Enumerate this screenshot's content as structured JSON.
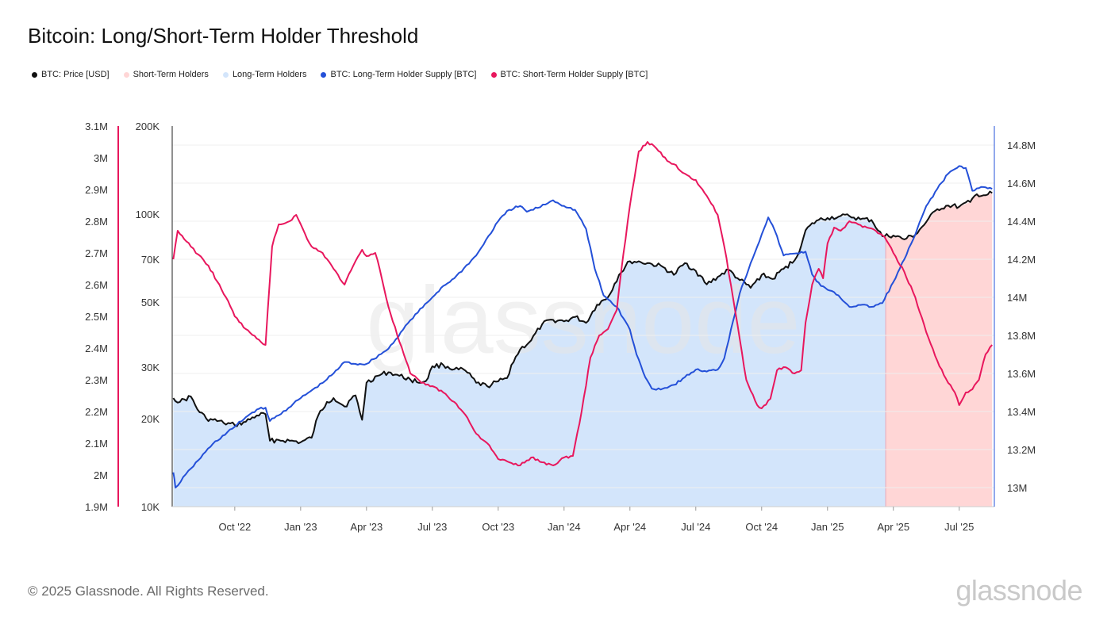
{
  "title": "Bitcoin: Long/Short-Term Holder Threshold",
  "legend": [
    {
      "label": "BTC: Price [USD]",
      "color": "#111111"
    },
    {
      "label": "Short-Term Holders",
      "color": "#ffd6d6"
    },
    {
      "label": "Long-Term Holders",
      "color": "#d3e5fb"
    },
    {
      "label": "BTC: Long-Term Holder Supply [BTC]",
      "color": "#2450d8"
    },
    {
      "label": "BTC: Short-Term Holder Supply [BTC]",
      "color": "#e8175d"
    }
  ],
  "footer": "© 2025 Glassnode. All Rights Reserved.",
  "brand": "glassnode",
  "watermark": "glassnode",
  "chart_data": {
    "type": "line",
    "title": "Bitcoin: Long/Short-Term Holder Threshold",
    "x_start": "2022-08",
    "x_end": "2025-08",
    "x_ticks": [
      {
        "label": "Oct '22",
        "m": 2
      },
      {
        "label": "Jan '23",
        "m": 5
      },
      {
        "label": "Apr '23",
        "m": 8
      },
      {
        "label": "Jul '23",
        "m": 11
      },
      {
        "label": "Oct '23",
        "m": 14
      },
      {
        "label": "Jan '24",
        "m": 17
      },
      {
        "label": "Apr '24",
        "m": 20
      },
      {
        "label": "Jul '24",
        "m": 23
      },
      {
        "label": "Oct '24",
        "m": 26
      },
      {
        "label": "Jan '25",
        "m": 29
      },
      {
        "label": "Apr '25",
        "m": 32
      },
      {
        "label": "Jul '25",
        "m": 35
      }
    ],
    "x_range_months": [
      -0.85,
      36.6
    ],
    "axes": {
      "sth_supply": {
        "range": [
          1900000,
          3100000
        ],
        "ticks": [
          {
            "v": 1900000,
            "label": "1.9M"
          },
          {
            "v": 2000000,
            "label": "2M"
          },
          {
            "v": 2100000,
            "label": "2.1M"
          },
          {
            "v": 2200000,
            "label": "2.2M"
          },
          {
            "v": 2300000,
            "label": "2.3M"
          },
          {
            "v": 2400000,
            "label": "2.4M"
          },
          {
            "v": 2500000,
            "label": "2.5M"
          },
          {
            "v": 2600000,
            "label": "2.6M"
          },
          {
            "v": 2700000,
            "label": "2.7M"
          },
          {
            "v": 2800000,
            "label": "2.8M"
          },
          {
            "v": 2900000,
            "label": "2.9M"
          },
          {
            "v": 3000000,
            "label": "3M"
          },
          {
            "v": 3100000,
            "label": "3.1M"
          }
        ]
      },
      "price_log": {
        "range": [
          10000,
          200000
        ],
        "ticks": [
          {
            "v": 10000,
            "label": "10K"
          },
          {
            "v": 20000,
            "label": "20K"
          },
          {
            "v": 30000,
            "label": "30K"
          },
          {
            "v": 50000,
            "label": "50K"
          },
          {
            "v": 70000,
            "label": "70K"
          },
          {
            "v": 100000,
            "label": "100K"
          },
          {
            "v": 200000,
            "label": "200K"
          }
        ]
      },
      "lth_supply": {
        "range": [
          12900000,
          14900000
        ],
        "ticks": [
          {
            "v": 13000000,
            "label": "13M"
          },
          {
            "v": 13200000,
            "label": "13.2M"
          },
          {
            "v": 13400000,
            "label": "13.4M"
          },
          {
            "v": 13600000,
            "label": "13.6M"
          },
          {
            "v": 13800000,
            "label": "13.8M"
          },
          {
            "v": 14000000,
            "label": "14M"
          },
          {
            "v": 14200000,
            "label": "14.2M"
          },
          {
            "v": 14400000,
            "label": "14.4M"
          },
          {
            "v": 14600000,
            "label": "14.6M"
          },
          {
            "v": 14800000,
            "label": "14.8M"
          }
        ]
      }
    },
    "regime_split_month": 31.65,
    "series": [
      {
        "name": "BTC: Price [USD]",
        "axis": "price_log",
        "color": "#111111",
        "points": [
          [
            -0.8,
            23500
          ],
          [
            -0.5,
            22800
          ],
          [
            0,
            23800
          ],
          [
            0.3,
            21500
          ],
          [
            0.7,
            20000
          ],
          [
            1,
            19800
          ],
          [
            1.5,
            19300
          ],
          [
            2,
            19000
          ],
          [
            2.5,
            19500
          ],
          [
            3,
            20500
          ],
          [
            3.4,
            20700
          ],
          [
            3.6,
            16800
          ],
          [
            4,
            16900
          ],
          [
            4.5,
            16800
          ],
          [
            5,
            16600
          ],
          [
            5.5,
            17200
          ],
          [
            5.8,
            20500
          ],
          [
            6.2,
            22800
          ],
          [
            6.5,
            23500
          ],
          [
            7,
            22000
          ],
          [
            7.5,
            24000
          ],
          [
            7.8,
            19800
          ],
          [
            8,
            26500
          ],
          [
            8.5,
            28000
          ],
          [
            9,
            28800
          ],
          [
            9.5,
            28000
          ],
          [
            10,
            27200
          ],
          [
            10.5,
            26500
          ],
          [
            10.8,
            27500
          ],
          [
            11,
            30200
          ],
          [
            11.5,
            30500
          ],
          [
            12,
            29500
          ],
          [
            12.5,
            29200
          ],
          [
            13,
            26500
          ],
          [
            13.5,
            25800
          ],
          [
            14,
            26800
          ],
          [
            14.4,
            27500
          ],
          [
            14.6,
            30500
          ],
          [
            15,
            34500
          ],
          [
            15.5,
            37000
          ],
          [
            16,
            42000
          ],
          [
            16.5,
            43500
          ],
          [
            17,
            43000
          ],
          [
            17.5,
            44500
          ],
          [
            18,
            42500
          ],
          [
            18.5,
            49000
          ],
          [
            19,
            52000
          ],
          [
            19.5,
            62000
          ],
          [
            20,
            69000
          ],
          [
            20.5,
            68500
          ],
          [
            21,
            67500
          ],
          [
            21.5,
            66000
          ],
          [
            22,
            62000
          ],
          [
            22.5,
            68000
          ],
          [
            23,
            64000
          ],
          [
            23.5,
            57500
          ],
          [
            24,
            61000
          ],
          [
            24.5,
            64500
          ],
          [
            25,
            59500
          ],
          [
            25.5,
            56000
          ],
          [
            26,
            62000
          ],
          [
            26.5,
            60000
          ],
          [
            27,
            65000
          ],
          [
            27.5,
            69500
          ],
          [
            27.8,
            78000
          ],
          [
            28,
            88000
          ],
          [
            28.5,
            95000
          ],
          [
            29,
            97000
          ],
          [
            29.5,
            98000
          ],
          [
            30,
            98500
          ],
          [
            30.5,
            96000
          ],
          [
            31,
            95500
          ],
          [
            31.5,
            84000
          ],
          [
            32,
            84500
          ],
          [
            32.5,
            82000
          ],
          [
            33,
            85000
          ],
          [
            33.5,
            94000
          ],
          [
            34,
            104000
          ],
          [
            34.5,
            107000
          ],
          [
            35,
            106000
          ],
          [
            35.5,
            110000
          ],
          [
            35.8,
            117000
          ],
          [
            36.2,
            116000
          ],
          [
            36.5,
            118000
          ]
        ]
      },
      {
        "name": "BTC: Long-Term Holder Supply [BTC]",
        "axis": "lth_supply",
        "color": "#2450d8",
        "points": [
          [
            -0.8,
            13080
          ],
          [
            -0.7,
            13000
          ],
          [
            0,
            13100
          ],
          [
            1,
            13230
          ],
          [
            2,
            13320
          ],
          [
            2.5,
            13370
          ],
          [
            3,
            13410
          ],
          [
            3.4,
            13420
          ],
          [
            3.6,
            13350
          ],
          [
            4,
            13380
          ],
          [
            5,
            13470
          ],
          [
            6,
            13550
          ],
          [
            6.5,
            13600
          ],
          [
            7,
            13660
          ],
          [
            7.5,
            13650
          ],
          [
            8,
            13650
          ],
          [
            9,
            13730
          ],
          [
            10,
            13880
          ],
          [
            11,
            14000
          ],
          [
            11.5,
            14060
          ],
          [
            12,
            14100
          ],
          [
            13,
            14220
          ],
          [
            14,
            14400
          ],
          [
            14.5,
            14460
          ],
          [
            15,
            14480
          ],
          [
            15.3,
            14450
          ],
          [
            15.8,
            14470
          ],
          [
            16.5,
            14510
          ],
          [
            17,
            14480
          ],
          [
            17.5,
            14460
          ],
          [
            18,
            14360
          ],
          [
            18.4,
            14150
          ],
          [
            18.8,
            14010
          ],
          [
            19.4,
            13950
          ],
          [
            20,
            13830
          ],
          [
            20.3,
            13700
          ],
          [
            20.7,
            13580
          ],
          [
            21,
            13520
          ],
          [
            21.5,
            13520
          ],
          [
            22,
            13540
          ],
          [
            22.5,
            13580
          ],
          [
            23,
            13620
          ],
          [
            23.5,
            13610
          ],
          [
            24,
            13620
          ],
          [
            24.3,
            13680
          ],
          [
            24.6,
            13830
          ],
          [
            25,
            14020
          ],
          [
            25.5,
            14180
          ],
          [
            26,
            14330
          ],
          [
            26.3,
            14420
          ],
          [
            26.6,
            14350
          ],
          [
            27,
            14220
          ],
          [
            27.5,
            14230
          ],
          [
            28,
            14240
          ],
          [
            28.3,
            14120
          ],
          [
            28.7,
            14060
          ],
          [
            29,
            14040
          ],
          [
            29.5,
            14010
          ],
          [
            30,
            13950
          ],
          [
            30.5,
            13960
          ],
          [
            31,
            13950
          ],
          [
            31.5,
            13970
          ],
          [
            32,
            14080
          ],
          [
            32.5,
            14200
          ],
          [
            33,
            14330
          ],
          [
            33.5,
            14480
          ],
          [
            34,
            14570
          ],
          [
            34.5,
            14650
          ],
          [
            35,
            14690
          ],
          [
            35.3,
            14680
          ],
          [
            35.6,
            14560
          ],
          [
            36,
            14580
          ],
          [
            36.5,
            14570
          ]
        ]
      },
      {
        "name": "BTC: Short-Term Holder Supply [BTC]",
        "axis": "sth_supply",
        "color": "#e8175d",
        "points": [
          [
            -0.8,
            2680
          ],
          [
            -0.6,
            2770
          ],
          [
            0,
            2720
          ],
          [
            0.8,
            2660
          ],
          [
            1.2,
            2610
          ],
          [
            1.6,
            2560
          ],
          [
            2,
            2500
          ],
          [
            2.5,
            2460
          ],
          [
            3,
            2430
          ],
          [
            3.4,
            2410
          ],
          [
            3.7,
            2720
          ],
          [
            4,
            2790
          ],
          [
            4.5,
            2800
          ],
          [
            4.8,
            2820
          ],
          [
            5.2,
            2760
          ],
          [
            5.5,
            2720
          ],
          [
            6,
            2700
          ],
          [
            6.5,
            2650
          ],
          [
            7,
            2600
          ],
          [
            7.4,
            2660
          ],
          [
            7.8,
            2710
          ],
          [
            8,
            2690
          ],
          [
            8.4,
            2700
          ],
          [
            8.6,
            2650
          ],
          [
            9,
            2530
          ],
          [
            9.5,
            2420
          ],
          [
            10,
            2320
          ],
          [
            10.5,
            2290
          ],
          [
            11,
            2280
          ],
          [
            11.5,
            2260
          ],
          [
            12,
            2230
          ],
          [
            12.5,
            2190
          ],
          [
            13,
            2130
          ],
          [
            13.5,
            2100
          ],
          [
            14,
            2050
          ],
          [
            14.5,
            2040
          ],
          [
            15,
            2030
          ],
          [
            15.5,
            2055
          ],
          [
            16,
            2040
          ],
          [
            16.5,
            2030
          ],
          [
            17,
            2055
          ],
          [
            17.4,
            2060
          ],
          [
            17.8,
            2200
          ],
          [
            18.2,
            2370
          ],
          [
            18.6,
            2440
          ],
          [
            19,
            2460
          ],
          [
            19.4,
            2520
          ],
          [
            19.6,
            2640
          ],
          [
            20,
            2850
          ],
          [
            20.4,
            3020
          ],
          [
            20.8,
            3050
          ],
          [
            21.2,
            3030
          ],
          [
            21.7,
            2990
          ],
          [
            22,
            2980
          ],
          [
            22.5,
            2950
          ],
          [
            23,
            2930
          ],
          [
            23.5,
            2880
          ],
          [
            24,
            2820
          ],
          [
            24.3,
            2720
          ],
          [
            24.6,
            2600
          ],
          [
            25,
            2430
          ],
          [
            25.3,
            2300
          ],
          [
            25.8,
            2220
          ],
          [
            26,
            2210
          ],
          [
            26.4,
            2240
          ],
          [
            26.7,
            2330
          ],
          [
            27,
            2340
          ],
          [
            27.5,
            2320
          ],
          [
            27.8,
            2330
          ],
          [
            28,
            2480
          ],
          [
            28.3,
            2600
          ],
          [
            28.6,
            2650
          ],
          [
            28.8,
            2620
          ],
          [
            29,
            2730
          ],
          [
            29.3,
            2780
          ],
          [
            29.6,
            2770
          ],
          [
            30,
            2800
          ],
          [
            30.4,
            2790
          ],
          [
            30.8,
            2780
          ],
          [
            31.2,
            2770
          ],
          [
            31.6,
            2750
          ],
          [
            32,
            2700
          ],
          [
            32.5,
            2640
          ],
          [
            33,
            2560
          ],
          [
            33.5,
            2450
          ],
          [
            34,
            2360
          ],
          [
            34.5,
            2290
          ],
          [
            34.8,
            2260
          ],
          [
            35,
            2220
          ],
          [
            35.3,
            2260
          ],
          [
            35.6,
            2270
          ],
          [
            35.9,
            2300
          ],
          [
            36.2,
            2380
          ],
          [
            36.5,
            2410
          ]
        ]
      }
    ]
  }
}
